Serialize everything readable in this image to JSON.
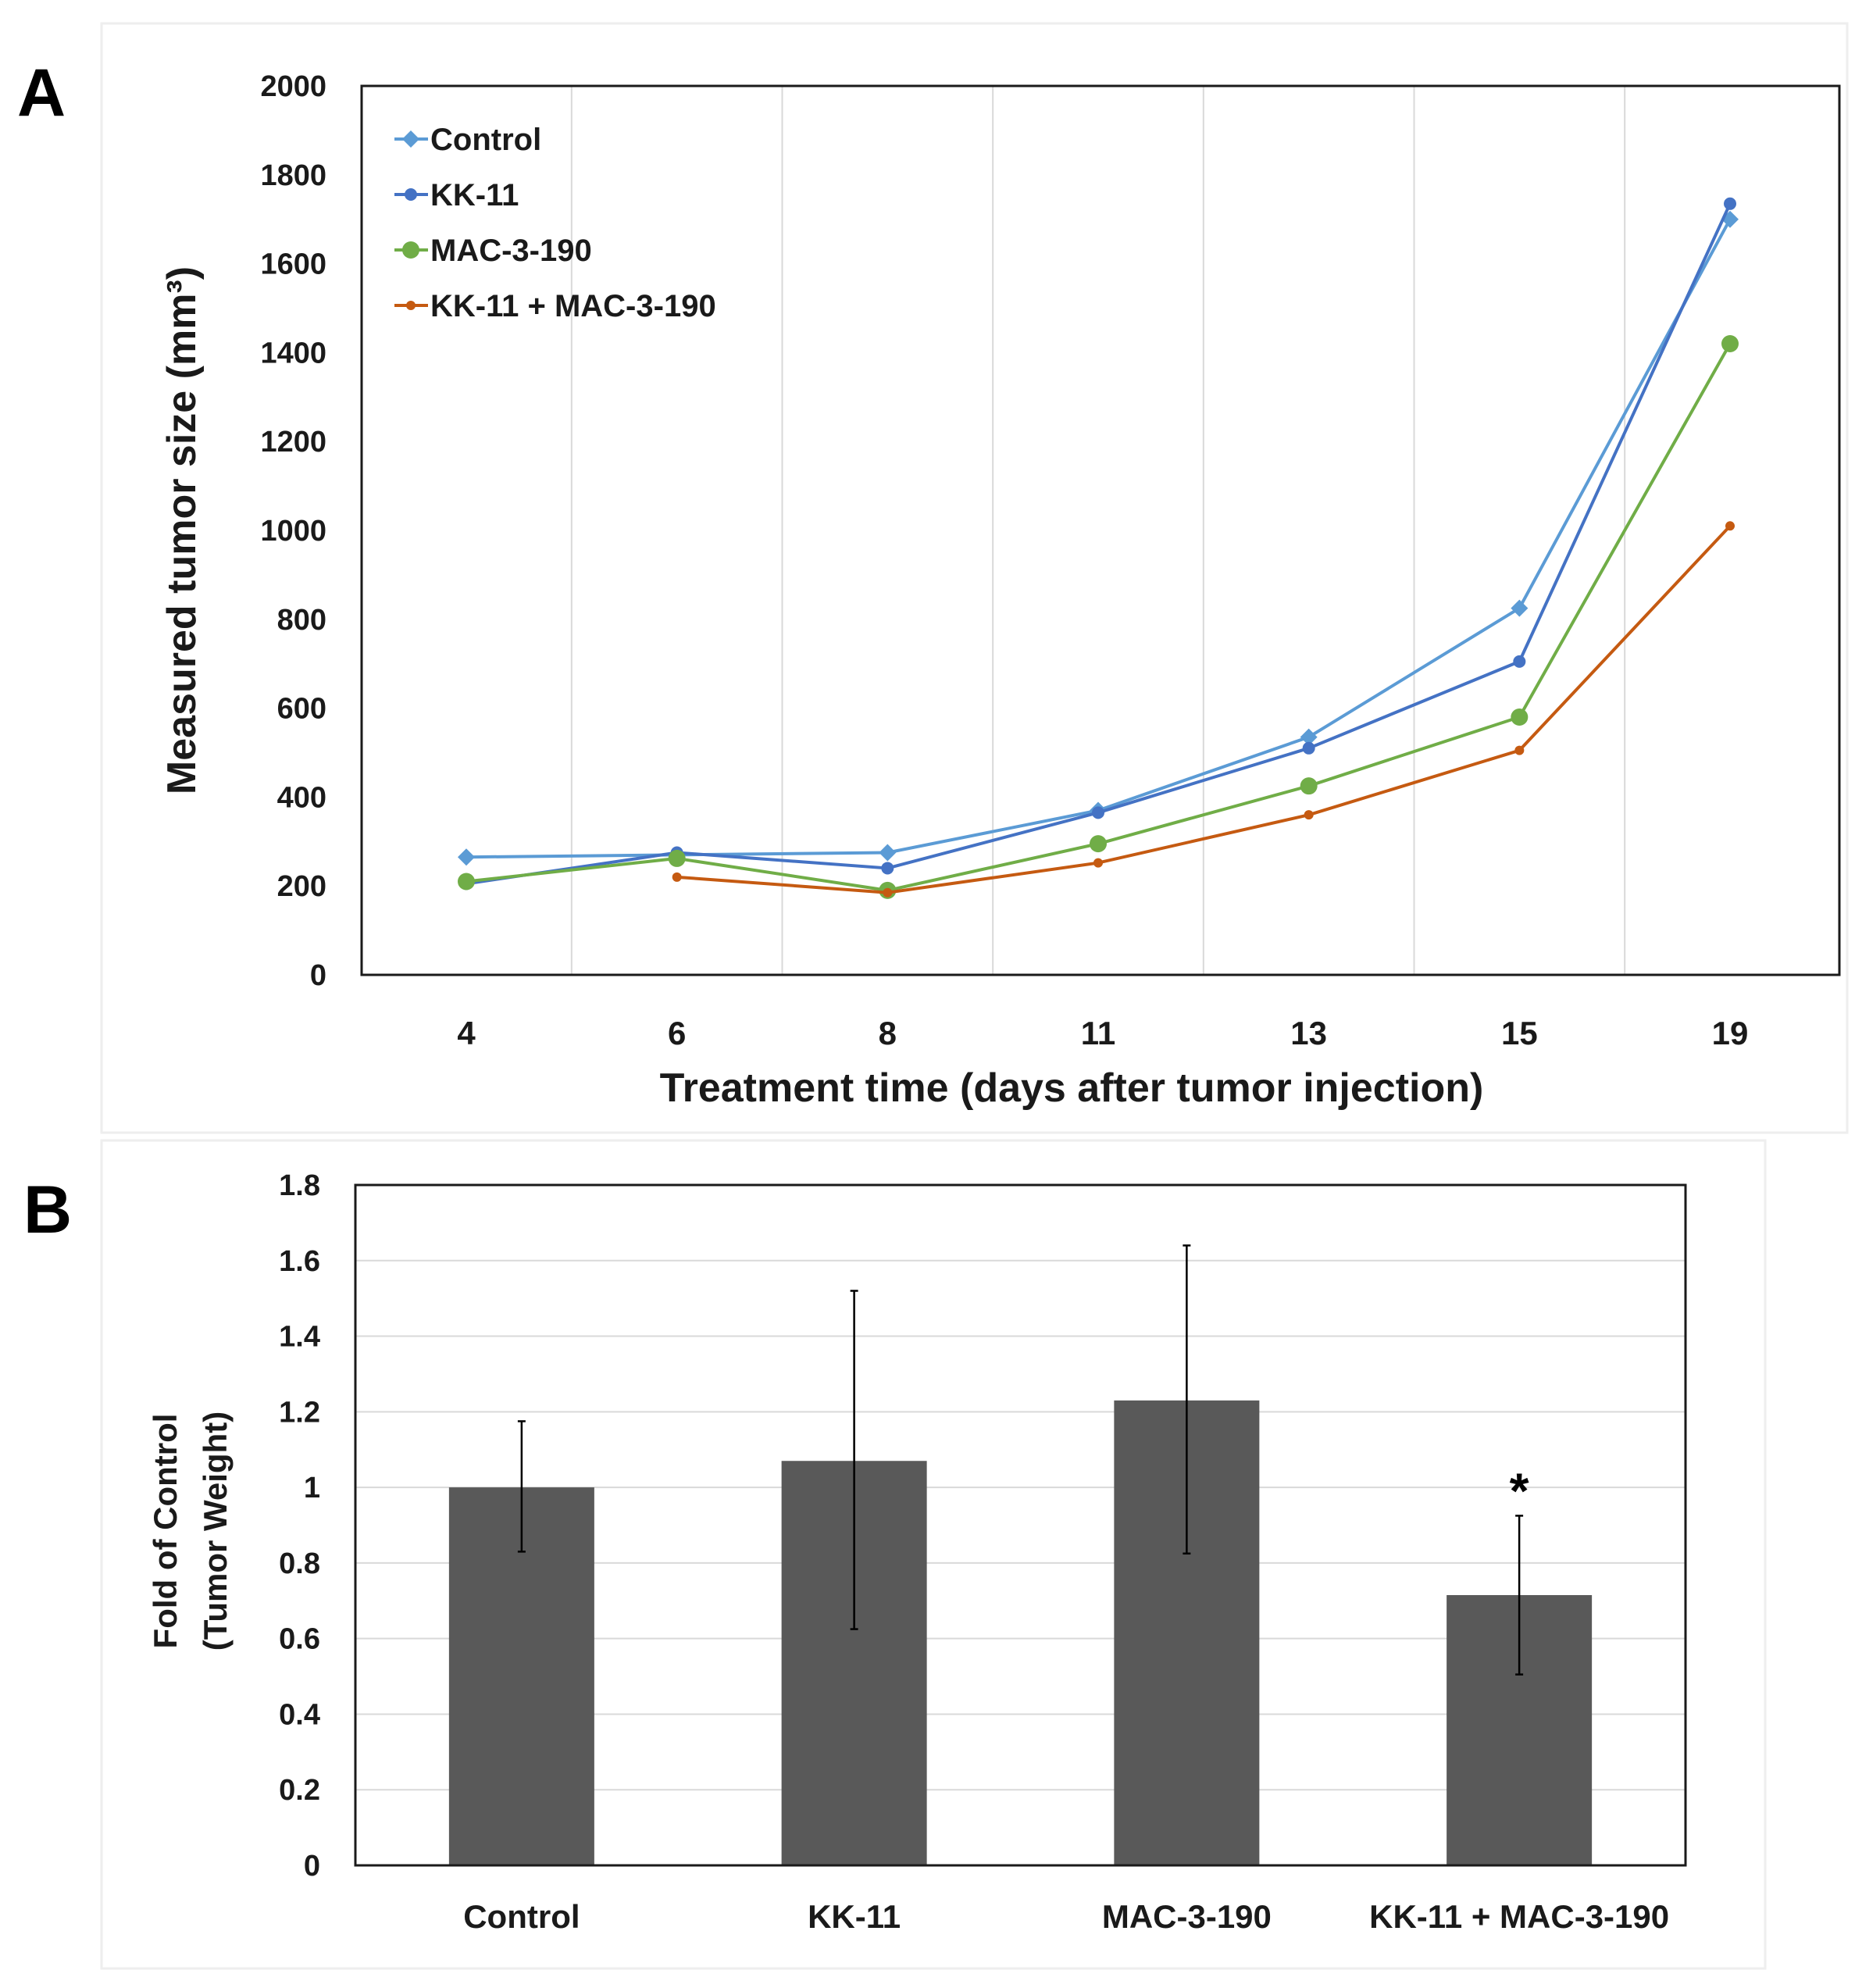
{
  "chart_data": [
    {
      "panel": "A",
      "type": "line",
      "title": "",
      "xlabel": "Treatment time (days after tumor injection)",
      "ylabel": "Measured tumor size (mm³)",
      "categories": [
        "4",
        "6",
        "8",
        "11",
        "13",
        "15",
        "19"
      ],
      "ylim": [
        0,
        2000
      ],
      "yticks": [
        0,
        200,
        400,
        600,
        800,
        1000,
        1200,
        1400,
        1600,
        1800,
        2000
      ],
      "grid": "vertical",
      "legend": "top-left",
      "series": [
        {
          "name": "Control",
          "color": "#5b9bd5",
          "marker": "diamond",
          "values": [
            265,
            270,
            275,
            370,
            535,
            825,
            1700
          ]
        },
        {
          "name": "KK-11",
          "color": "#4472c4",
          "marker": "circle",
          "values": [
            205,
            275,
            240,
            365,
            510,
            705,
            1735
          ]
        },
        {
          "name": "MAC-3-190",
          "color": "#70ad47",
          "marker": "circle-large",
          "values": [
            210,
            262,
            190,
            295,
            425,
            580,
            1420
          ]
        },
        {
          "name": "KK-11 + MAC-3-190",
          "color": "#c55a11",
          "marker": "circle-small",
          "values": [
            null,
            220,
            185,
            252,
            360,
            505,
            1010
          ]
        }
      ]
    },
    {
      "panel": "B",
      "type": "bar",
      "title": "",
      "xlabel": "",
      "ylabel": "Fold of Control",
      "ylabel2": "(Tumor Weight)",
      "categories": [
        "Control",
        "KK-11",
        "MAC-3-190",
        "KK-11 + MAC-3-190"
      ],
      "values": [
        1.0,
        1.07,
        1.23,
        0.715
      ],
      "error_low": [
        0.83,
        0.625,
        0.825,
        0.505
      ],
      "error_high": [
        1.175,
        1.52,
        1.64,
        0.925
      ],
      "bar_color": "#595959",
      "ylim": [
        0,
        1.8
      ],
      "yticks": [
        "0",
        "0.2",
        "0.4",
        "0.6",
        "0.8",
        "1",
        "1.2",
        "1.4",
        "1.6",
        "1.8"
      ],
      "grid": "horizontal",
      "annotations": [
        {
          "category": "KK-11 + MAC-3-190",
          "text": "*"
        }
      ]
    }
  ],
  "panels": {
    "a_letter": "A",
    "b_letter": "B"
  }
}
